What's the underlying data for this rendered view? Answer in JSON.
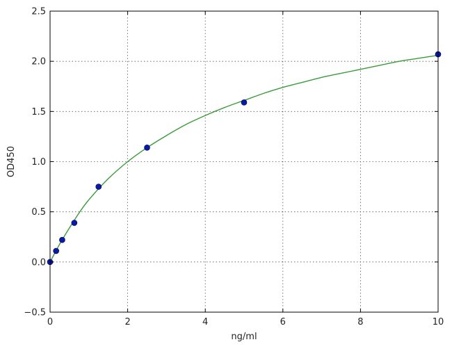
{
  "chart_data": {
    "type": "scatter",
    "title": "",
    "xlabel": "ng/ml",
    "ylabel": "OD450",
    "xlim": [
      0,
      10
    ],
    "ylim": [
      -0.5,
      2.5
    ],
    "x_ticks": [
      0,
      2,
      4,
      6,
      8,
      10
    ],
    "y_ticks": [
      -0.5,
      0.0,
      0.5,
      1.0,
      1.5,
      2.0,
      2.5
    ],
    "x_tick_labels": [
      "0",
      "2",
      "4",
      "6",
      "8",
      "10"
    ],
    "y_tick_labels": [
      "−0.5",
      "0.0",
      "0.5",
      "1.0",
      "1.5",
      "2.0",
      "2.5"
    ],
    "grid": true,
    "series": [
      {
        "kind": "points",
        "color": "#0a1aa8",
        "x": [
          0,
          0.156,
          0.3125,
          0.625,
          1.25,
          2.5,
          5,
          10
        ],
        "y": [
          0.0,
          0.11,
          0.22,
          0.39,
          0.75,
          1.14,
          1.59,
          2.07
        ]
      },
      {
        "kind": "fit-curve",
        "color": "#3a9a3a",
        "x": [
          0,
          0.25,
          0.5,
          0.75,
          1,
          1.5,
          2,
          2.5,
          3,
          3.5,
          4,
          4.5,
          5,
          5.5,
          6,
          6.5,
          7,
          7.5,
          8,
          8.5,
          9,
          9.5,
          10
        ],
        "y": [
          0.0,
          0.18,
          0.34,
          0.49,
          0.62,
          0.83,
          1.0,
          1.14,
          1.26,
          1.37,
          1.46,
          1.54,
          1.61,
          1.68,
          1.74,
          1.79,
          1.84,
          1.88,
          1.92,
          1.96,
          2.0,
          2.03,
          2.06
        ]
      }
    ]
  }
}
